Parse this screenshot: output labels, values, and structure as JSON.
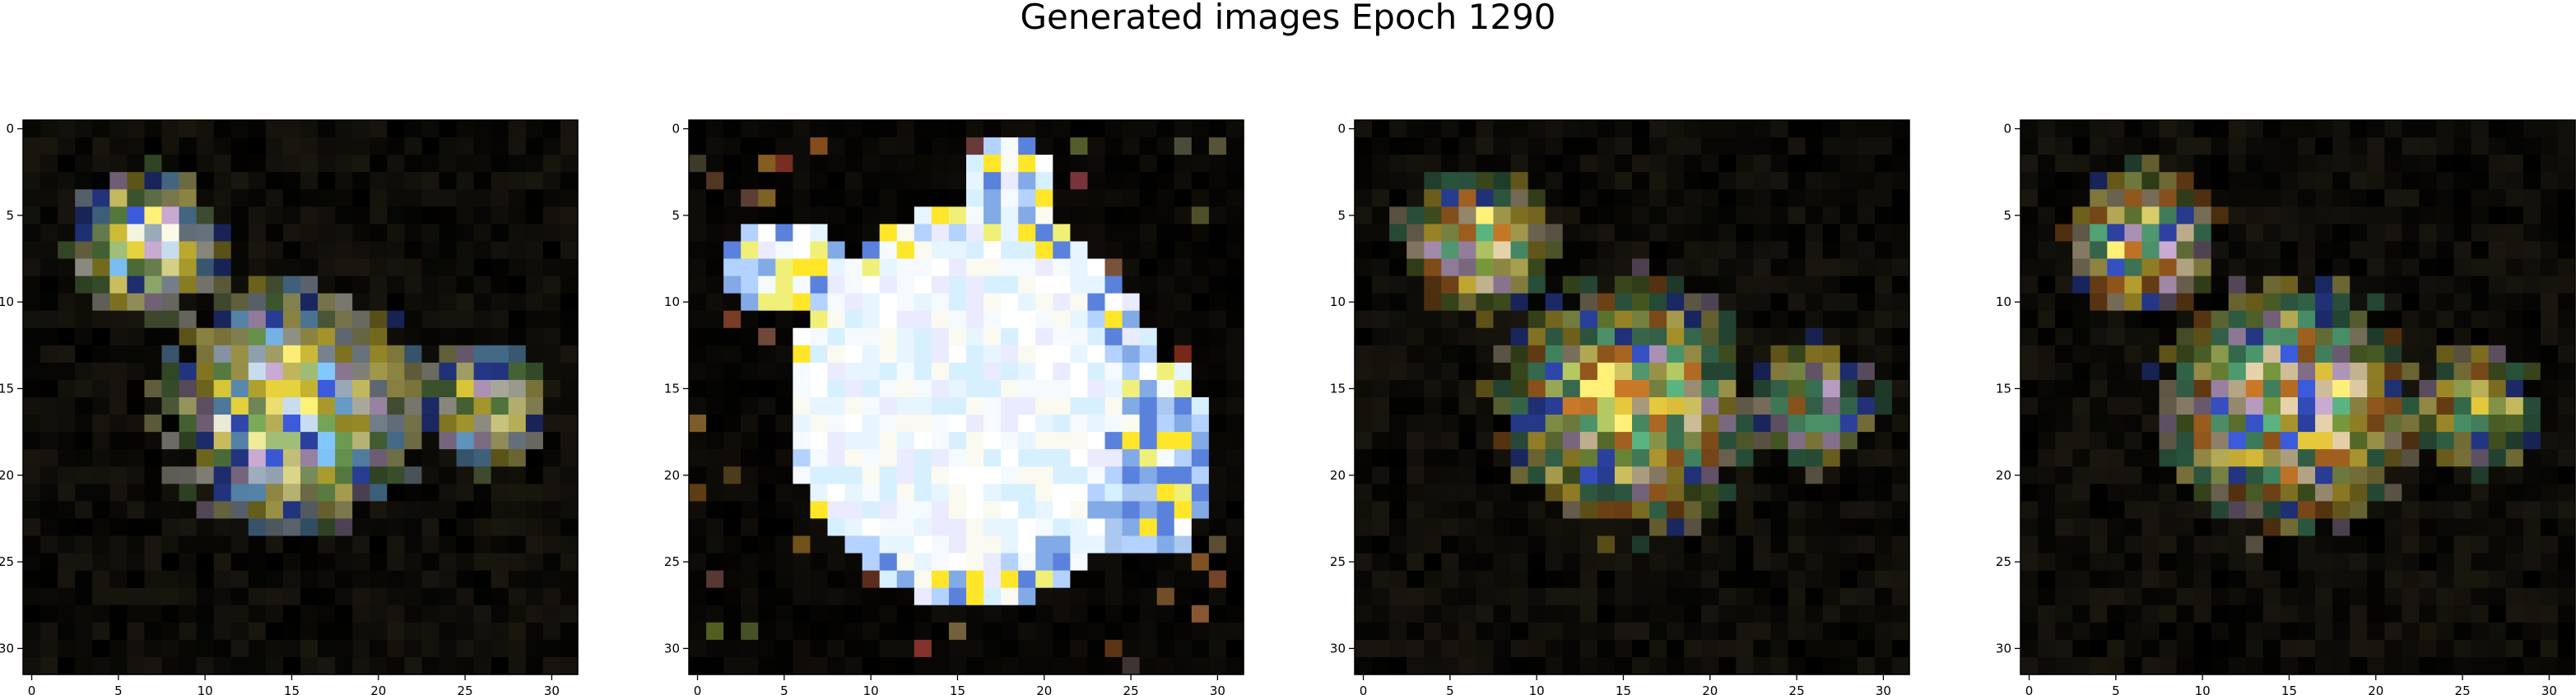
{
  "figure": {
    "title": "Generated images Epoch 1290"
  },
  "panels": [
    {
      "id": 1,
      "style": "sparse-blue-yellow"
    },
    {
      "id": 2,
      "style": "bright-white-blob"
    },
    {
      "id": 3,
      "style": "sparse-green-yellow"
    },
    {
      "id": 4,
      "style": "sparse-green-yellow"
    }
  ],
  "axes": {
    "x_ticks": [
      0,
      5,
      10,
      15,
      20,
      25,
      30
    ],
    "y_ticks": [
      0,
      5,
      10,
      15,
      20,
      25,
      30
    ],
    "grid_size": 32,
    "background": "#000000"
  }
}
